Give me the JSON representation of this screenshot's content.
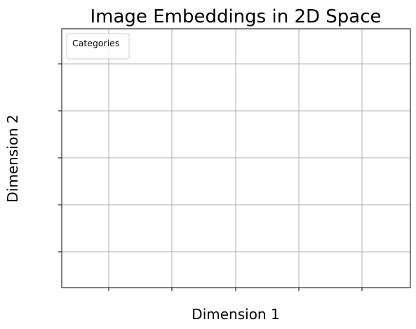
{
  "chart_data": {
    "type": "scatter",
    "title": "Image Embeddings in 2D Space",
    "xlabel": "Dimension 1",
    "ylabel": "Dimension 2",
    "x_ticks": [
      null,
      null,
      null,
      null,
      null
    ],
    "y_ticks": [
      null,
      null,
      null,
      null,
      null
    ],
    "x_tick_labels": [
      "",
      "",
      "",
      "",
      ""
    ],
    "y_tick_labels": [
      "",
      "",
      "",
      "",
      ""
    ],
    "grid": true,
    "legend": {
      "title": "Categories",
      "placement": "upper left",
      "entries": []
    },
    "series": [],
    "colors": {
      "grid": "#b0b0b0",
      "frame": "#000000",
      "legend_border": "#cccccc",
      "background": "#ffffff"
    }
  }
}
